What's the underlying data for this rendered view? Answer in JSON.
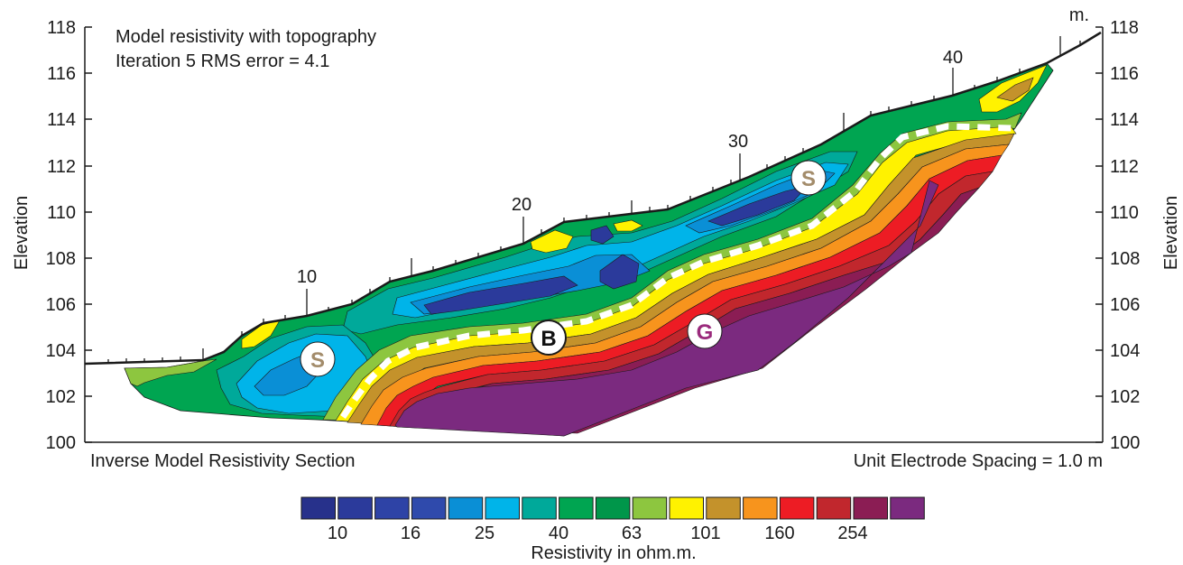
{
  "title": {
    "line1": "Model resistivity with topography",
    "line2": "Iteration  5 RMS   error = 4.1"
  },
  "axes": {
    "y_left_label": "Elevation",
    "y_right_label": "Elevation",
    "y_ticks": [
      "118",
      "116",
      "114",
      "112",
      "110",
      "108",
      "106",
      "104",
      "102",
      "100"
    ],
    "x_markers": [
      "10",
      "20",
      "30",
      "40"
    ],
    "unit": "m."
  },
  "section": {
    "caption_left": "Inverse Model Resistivity Section",
    "caption_right": "Unit Electrode Spacing = 1.0 m"
  },
  "markers": {
    "s_left": "S",
    "s_right": "S",
    "b": "B",
    "g": "G"
  },
  "legend": {
    "values": [
      "10",
      "16",
      "25",
      "40",
      "63",
      "101",
      "160",
      "254"
    ],
    "title": "Resistivity in ohm.m.",
    "colors": [
      "#27318b",
      "#2b3a9b",
      "#2e43a6",
      "#2f4aac",
      "#0a8fd6",
      "#00b4e9",
      "#00a99a",
      "#00a551",
      "#00964a",
      "#8dc63f",
      "#fff200",
      "#c4922b",
      "#f7941d",
      "#ed1c24",
      "#c1272d",
      "#8b1d54",
      "#7b2a7f"
    ]
  },
  "layer_colors": {
    "purple": "#7b2a7f",
    "deep_red": "#8b1d54",
    "red": "#ed1c24",
    "orange": "#f7941d",
    "brown": "#c4922b",
    "yellow": "#fff200",
    "lime": "#8dc63f",
    "green": "#00a551",
    "teal": "#00a99a",
    "cyan": "#00b4e9",
    "blue": "#0a8fd6",
    "navy": "#2b3a9b",
    "marker_s": "#a38c6b",
    "marker_g": "#9a2a7c"
  }
}
